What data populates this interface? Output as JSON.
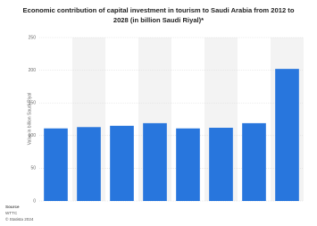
{
  "chart_data": {
    "type": "bar",
    "title": "Economic contribution of capital investment in tourism to Saudi Arabia from 2012 to 2028 (in billion Saudi Riyal)*",
    "y_label": "Value in billion Saudi Riyal",
    "categories": [
      null,
      null,
      null,
      null,
      null,
      null,
      null,
      null
    ],
    "values": [
      111,
      113,
      115,
      119,
      111,
      112,
      119,
      202
    ],
    "color": "#2876dd",
    "ylim": [
      0,
      250
    ],
    "yticks": [
      0,
      50,
      100,
      150,
      200,
      250
    ],
    "grid": true,
    "source_label": "Source",
    "source": "WTTC",
    "copyright": "© Statista 2024"
  }
}
